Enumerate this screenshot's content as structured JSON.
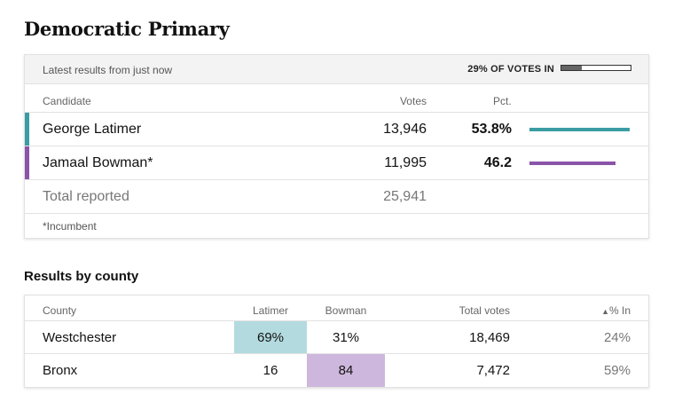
{
  "title": "Democratic Primary",
  "results": {
    "latest_label": "Latest results from just now",
    "votes_in_label": "29% OF VOTES IN",
    "votes_in_fraction": 0.29,
    "columns": {
      "candidate": "Candidate",
      "votes": "Votes",
      "pct": "Pct."
    },
    "candidates": [
      {
        "name": "George Latimer",
        "votes": "13,946",
        "pct": "53.8%",
        "pct_value": 53.8,
        "color": "#3b9ca3"
      },
      {
        "name": "Jamaal Bowman*",
        "votes": "11,995",
        "pct": "46.2",
        "pct_value": 46.2,
        "color": "#8a54a8"
      }
    ],
    "total_label": "Total reported",
    "total_votes": "25,941",
    "note": "*Incumbent"
  },
  "county_section": {
    "title": "Results by county",
    "columns": {
      "county": "County",
      "latimer": "Latimer",
      "bowman": "Bowman",
      "total": "Total votes",
      "pct_in": "% In",
      "sort_icon": "▲"
    },
    "rows": [
      {
        "county": "Westchester",
        "latimer": "69%",
        "bowman": "31%",
        "total": "18,469",
        "pct_in": "24%",
        "winner": "latimer"
      },
      {
        "county": "Bronx",
        "latimer": "16",
        "bowman": "84",
        "total": "7,472",
        "pct_in": "59%",
        "winner": "bowman"
      }
    ],
    "highlight_colors": {
      "latimer": "#b3dbdf",
      "bowman": "#cdb7dc"
    }
  }
}
